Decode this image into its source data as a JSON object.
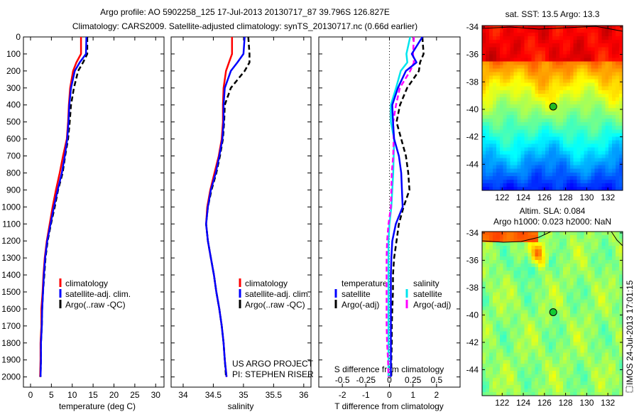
{
  "title": {
    "line1": "Argo profile: AO 5902258_125 17-Jul-2013 20130717_87 39.796S 126.827E",
    "line2": "Climatology: CARS2009. Satellite-adjusted climatology: synTS_20130717.nc (0.66d earlier)"
  },
  "legend_profiles": [
    "climatology",
    "satellite-adj. clim.",
    "Argo(..raw -QC)"
  ],
  "legend_diff": {
    "temperature": "temperature",
    "salinity": "salinity",
    "t_satellite": "satellite",
    "t_argo": "Argo(-adj)",
    "s_satellite": "satellite",
    "s_argo": "Argo(-adj)"
  },
  "notes": {
    "project": "US ARGO PROJECT",
    "pi": "PI: STEPHEN RISER"
  },
  "timestamp": "IMOS 24-Jul-2013 17:01:15",
  "colors": {
    "climatology": "#ff0000",
    "satellite_t": "#0000ff",
    "argo_t": "#000000",
    "satellite_s": "#00e5ee",
    "argo_s": "#ff00ff"
  },
  "chart_data": [
    {
      "type": "line",
      "id": "temperature",
      "xlabel": "temperature (deg C)",
      "ylabel": "",
      "xlim": [
        -1.7,
        32
      ],
      "ylim": [
        0,
        2060
      ],
      "y_reversed": true,
      "xticks": [
        0,
        5,
        10,
        15,
        20,
        25,
        30
      ],
      "yticks": [
        0,
        100,
        200,
        300,
        400,
        500,
        600,
        700,
        800,
        900,
        1000,
        1100,
        1200,
        1300,
        1400,
        1500,
        1600,
        1700,
        1800,
        1900,
        2000
      ],
      "depth": [
        0,
        100,
        150,
        200,
        300,
        400,
        500,
        600,
        700,
        800,
        900,
        1000,
        1100,
        1200,
        1300,
        1400,
        1500,
        1600,
        1700,
        1800,
        1900,
        2000
      ],
      "series": [
        {
          "name": "climatology",
          "color": "#ff0000",
          "dash": false,
          "values": [
            12.1,
            12.1,
            11.0,
            10.2,
            9.5,
            9.2,
            9.0,
            8.7,
            7.8,
            7.0,
            6.1,
            5.3,
            4.6,
            3.9,
            3.4,
            3.1,
            2.9,
            2.6,
            2.6,
            2.4,
            2.4,
            2.3
          ]
        },
        {
          "name": "Argo(..raw -QC)",
          "color": "#000000",
          "dash": true,
          "values": [
            13.6,
            13.6,
            12.6,
            11.4,
            10.4,
            9.7,
            9.4,
            9.0,
            8.3,
            7.7,
            6.6,
            5.8,
            4.9,
            4.1,
            3.6,
            3.3,
            3.0,
            2.8,
            2.7,
            2.5,
            2.5,
            2.4
          ]
        },
        {
          "name": "satellite-adj. clim.",
          "color": "#0000ff",
          "dash": false,
          "values": [
            13.4,
            13.3,
            11.8,
            10.6,
            9.7,
            9.3,
            9.1,
            8.8,
            8.2,
            7.5,
            6.5,
            5.6,
            4.8,
            4.0,
            3.5,
            3.2,
            3.0,
            2.8,
            2.7,
            2.5,
            2.5,
            2.4
          ]
        }
      ]
    },
    {
      "type": "line",
      "id": "salinity",
      "xlabel": "salinity",
      "ylabel": "",
      "xlim": [
        33.8,
        36.12
      ],
      "ylim": [
        0,
        2060
      ],
      "y_reversed": true,
      "xticks": [
        "34",
        "34.5",
        "35",
        "35.5",
        "36"
      ],
      "depth": [
        0,
        100,
        150,
        200,
        300,
        400,
        500,
        600,
        700,
        800,
        900,
        1000,
        1100,
        1200,
        1300,
        1400,
        1500,
        1600,
        1700,
        1800,
        1900,
        2000
      ],
      "series": [
        {
          "name": "climatology",
          "color": "#ff0000",
          "dash": false,
          "values": [
            34.81,
            34.81,
            34.76,
            34.71,
            34.67,
            34.66,
            34.66,
            34.64,
            34.59,
            34.52,
            34.45,
            34.4,
            34.38,
            34.41,
            34.46,
            34.51,
            34.55,
            34.6,
            34.64,
            34.67,
            34.69,
            34.72
          ]
        },
        {
          "name": "Argo(..raw -QC)",
          "color": "#000000",
          "dash": true,
          "values": [
            35.08,
            35.1,
            35.1,
            35.02,
            34.79,
            34.69,
            34.68,
            34.66,
            34.61,
            34.55,
            34.47,
            34.41,
            34.38,
            34.41,
            34.46,
            34.51,
            34.55,
            34.6,
            34.64,
            34.67,
            34.69,
            34.71
          ]
        },
        {
          "name": "satellite-adj. clim.",
          "color": "#0000ff",
          "dash": false,
          "values": [
            35.02,
            35.0,
            34.9,
            34.79,
            34.69,
            34.67,
            34.67,
            34.65,
            34.6,
            34.54,
            34.46,
            34.41,
            34.38,
            34.41,
            34.46,
            34.51,
            34.55,
            34.6,
            34.64,
            34.67,
            34.69,
            34.72
          ]
        }
      ]
    },
    {
      "type": "line",
      "id": "difference",
      "xlabel": "T difference from climatology",
      "x2label": "S difference from climatology",
      "xlim": [
        -3,
        3
      ],
      "x2lim": [
        -0.75,
        0.75
      ],
      "ylim": [
        0,
        2060
      ],
      "y_reversed": true,
      "xticks": [
        "-2",
        "-1",
        "0",
        "1",
        "2"
      ],
      "x2ticks": [
        "-0.5",
        "-0.25",
        "0",
        "0.25",
        "0.5"
      ],
      "depth": [
        0,
        100,
        150,
        200,
        300,
        400,
        500,
        600,
        700,
        800,
        900,
        1000,
        1100,
        1200,
        1300,
        1400,
        1500,
        1600,
        1700,
        1800,
        1900,
        2000
      ],
      "series": [
        {
          "name": "salinity satellite",
          "axis": "S",
          "color": "#00e5ee",
          "dash": false,
          "values": [
            0.22,
            0.18,
            0.19,
            0.12,
            0.07,
            0.015,
            0.015,
            0.05,
            0.045,
            0.04,
            0.03,
            0.02,
            0.0,
            -0.01,
            -0.01,
            -0.01,
            -0.01,
            -0.01,
            -0.01,
            -0.01,
            -0.01,
            -0.01
          ]
        },
        {
          "name": "salinity Argo(-adj)",
          "axis": "S",
          "color": "#ff00ff",
          "dash": true,
          "values": [
            0.26,
            0.25,
            0.26,
            0.22,
            0.11,
            0.07,
            0.04,
            0.045,
            0.04,
            0.025,
            0.02,
            0.015,
            -0.01,
            -0.025,
            -0.03,
            -0.03,
            -0.03,
            -0.03,
            -0.03,
            -0.025,
            -0.015,
            -0.01
          ]
        },
        {
          "name": "temperature Argo(-adj)",
          "axis": "T",
          "color": "#000000",
          "dash": true,
          "values": [
            1.4,
            1.45,
            1.3,
            1.25,
            0.75,
            0.45,
            0.3,
            0.5,
            0.7,
            0.8,
            0.85,
            0.6,
            0.4,
            0.3,
            0.2,
            0.15,
            0.15,
            0.12,
            0.1,
            0.1,
            0.08,
            0.08
          ]
        },
        {
          "name": "temperature satellite",
          "axis": "T",
          "color": "#0000ff",
          "dash": false,
          "values": [
            1.4,
            0.95,
            1.15,
            0.7,
            0.36,
            0.12,
            0.15,
            0.2,
            0.4,
            0.5,
            0.53,
            0.56,
            0.27,
            0.12,
            0.08,
            0.06,
            0.06,
            0.06,
            0.06,
            0.06,
            0.06,
            0.06
          ]
        }
      ]
    },
    {
      "type": "heatmap",
      "id": "sst_map",
      "title": "sat. SST: 13.5 Argo: 13.3",
      "xlim": [
        120.1,
        133.4
      ],
      "ylim": [
        -45.9,
        -33.9
      ],
      "xticks": [
        "122",
        "124",
        "126",
        "128",
        "130",
        "132"
      ],
      "yticks": [
        "-34",
        "-36",
        "-38",
        "-40",
        "-42",
        "-44"
      ],
      "marker": {
        "lat": -39.796,
        "lon": 126.827
      }
    },
    {
      "type": "heatmap",
      "id": "sla_map",
      "title": "Altim. SLA: 0.084",
      "subtitle": "Argo h1000: 0.023 h2000: NaN",
      "xlim": [
        120.1,
        133.4
      ],
      "ylim": [
        -45.9,
        -33.9
      ],
      "xticks": [
        "122",
        "124",
        "126",
        "128",
        "130",
        "132"
      ],
      "yticks": [
        "-34",
        "-36",
        "-38",
        "-40",
        "-42",
        "-44"
      ],
      "marker": {
        "lat": -39.796,
        "lon": 126.827
      }
    }
  ]
}
